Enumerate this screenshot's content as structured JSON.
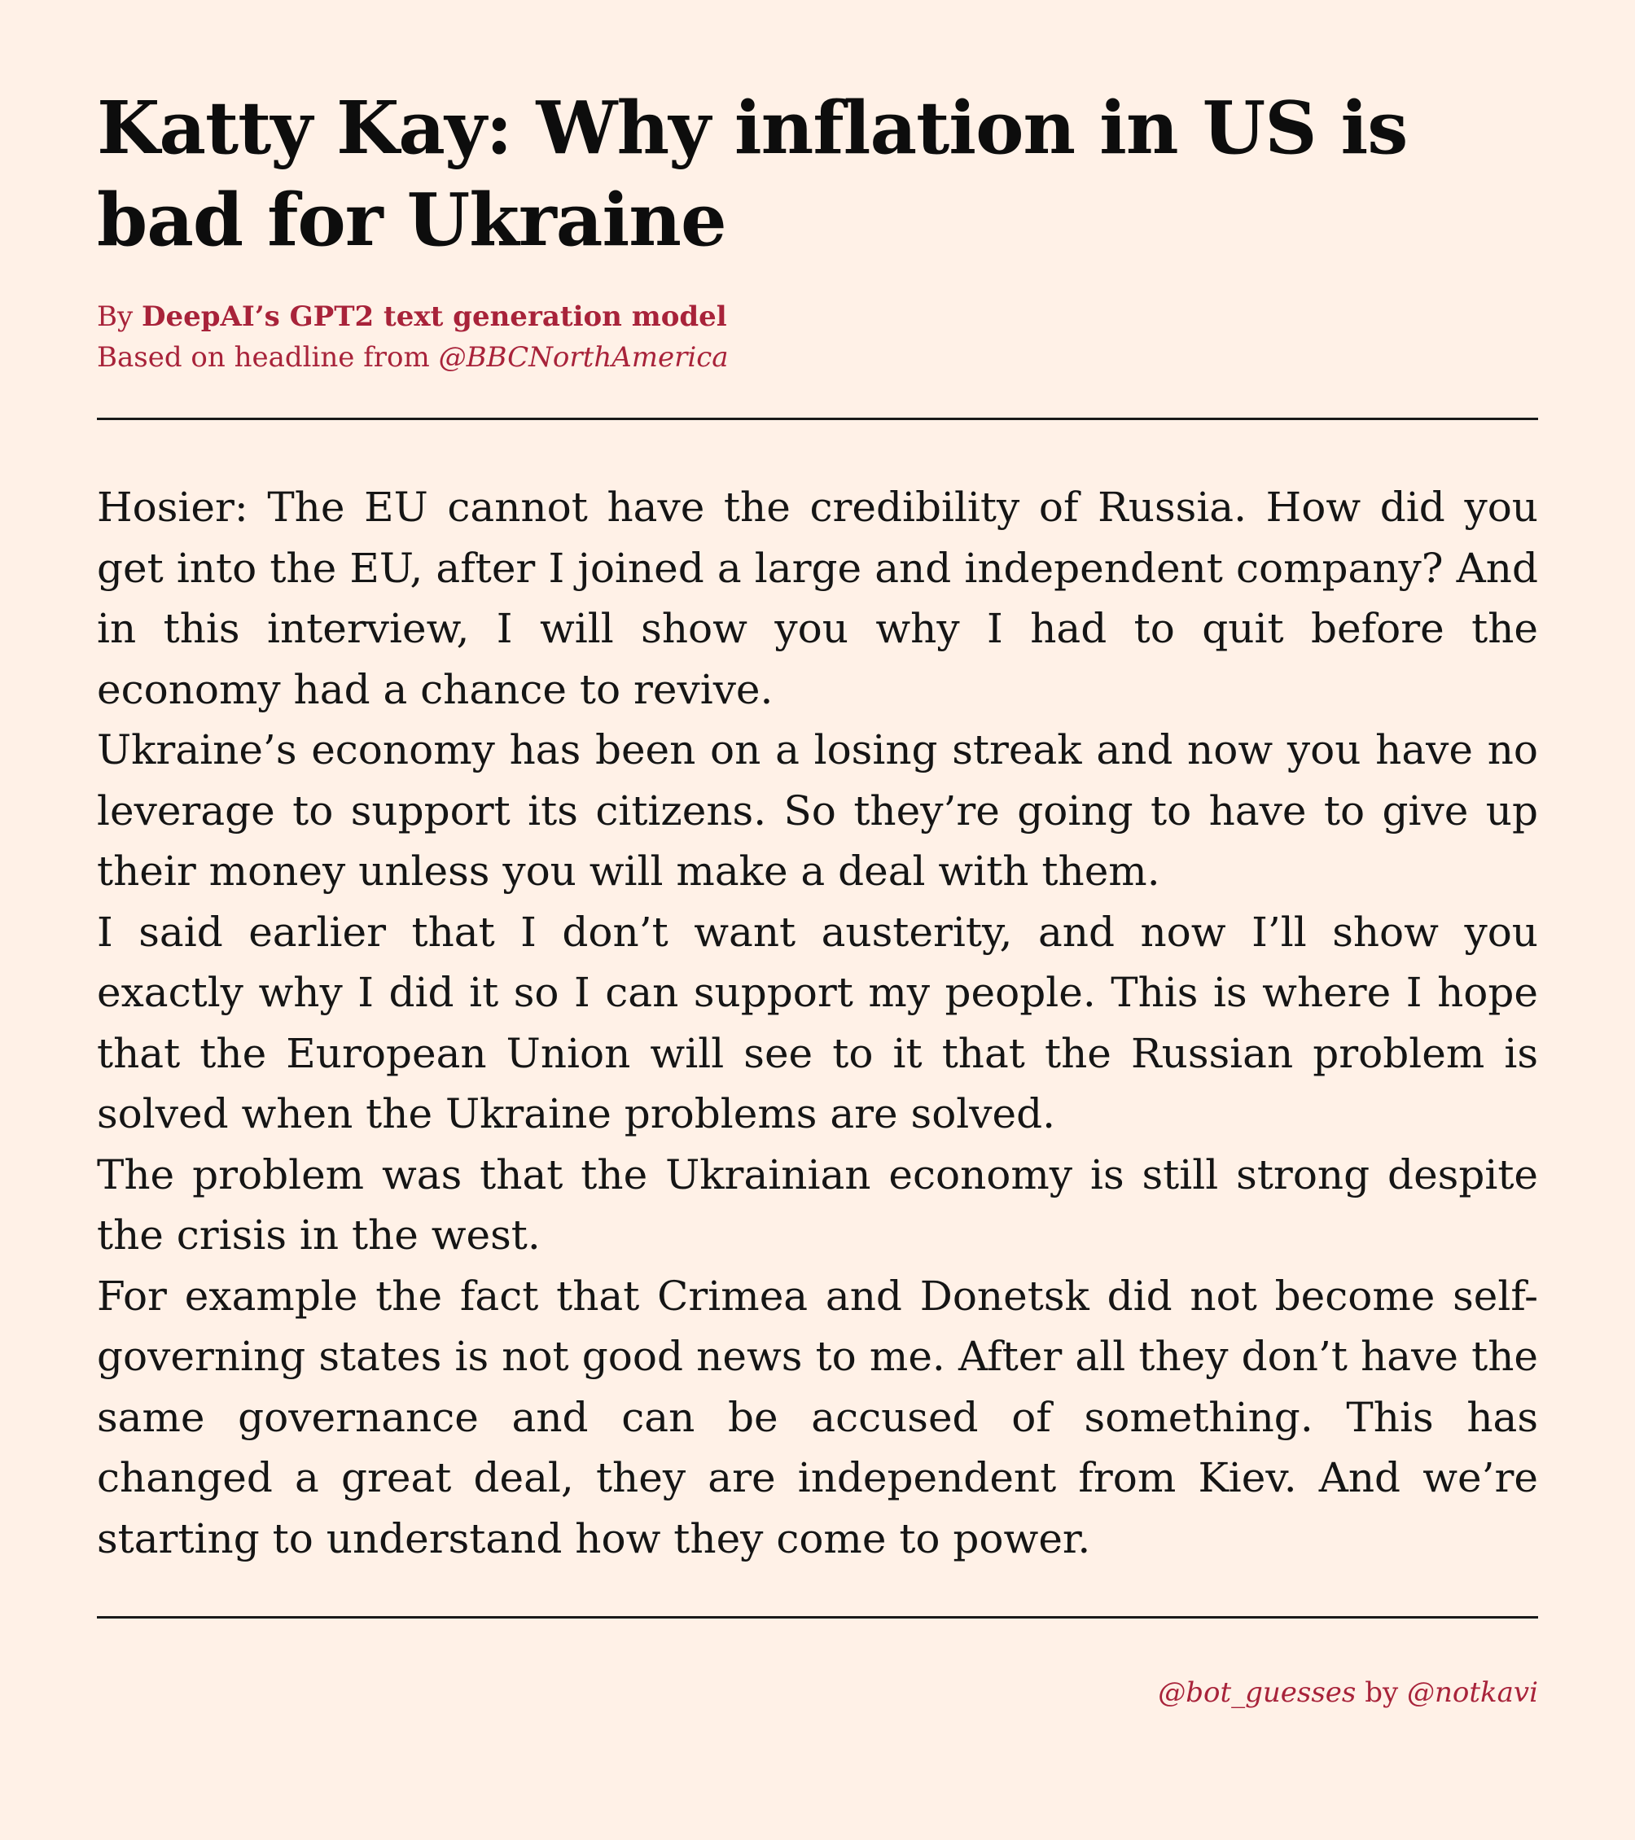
{
  "article": {
    "title": "Katty Kay: Why inflation in US is bad for Ukraine",
    "byline": {
      "prefix": "By",
      "author": "DeepAI’s GPT2 text generation model",
      "based_on_prefix": "Based on headline from",
      "source_handle": "@BBCNorthAmerica"
    },
    "paragraphs": [
      "Hosier: The EU cannot have the credibility of Russia. How did you get into the EU, after I joined a large and independent company? And in this interview, I will show you why I had to quit before the economy had a chance to revive.",
      "Ukraine’s economy has been on a losing streak and now you have no leverage to support its citizens. So they’re going to have to give up their money unless you will make a deal with them.",
      "I said earlier that I don’t want austerity, and now I’ll show you exactly why I did it so I can support my people. This is where I hope that the European Union will see to it that the Russian problem is solved when the Ukraine problems are solved.",
      "The problem was that the Ukrainian economy is still strong despite the crisis in the west.",
      "For example the fact that Crimea and Donetsk did not become self-governing states is not good news to me. After all they don’t have the same governance and can be accused of something. This has changed a great deal, they are independent from Kiev. And we’re starting to understand how they come to power."
    ]
  },
  "footer": {
    "bot_handle": "@bot_guesses",
    "by_word": "by",
    "creator_handle": "@notkavi"
  },
  "colors": {
    "background": "#fff1e7",
    "accent": "#a8233a",
    "text": "#111111"
  }
}
